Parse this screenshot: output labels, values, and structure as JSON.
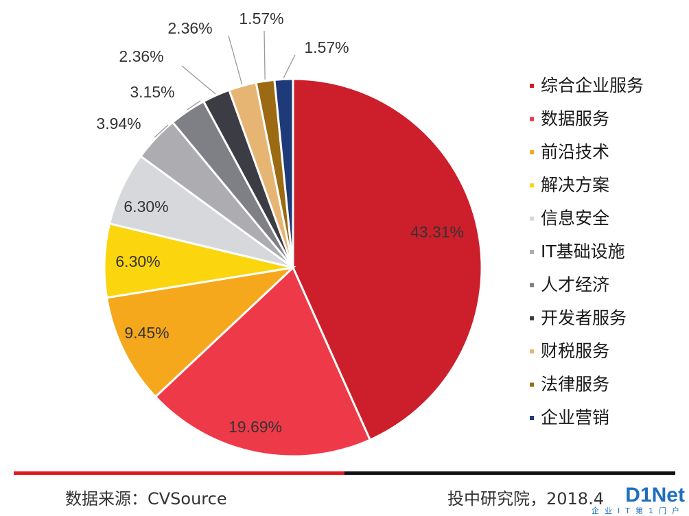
{
  "chart_data": {
    "type": "pie",
    "categories": [
      "综合企业服务",
      "数据服务",
      "前沿技术",
      "解决方案",
      "信息安全",
      "IT基础设施",
      "人才经济",
      "开发者服务",
      "财税服务",
      "法律服务",
      "企业营销"
    ],
    "values": [
      43.31,
      19.69,
      9.45,
      6.3,
      6.3,
      3.94,
      3.15,
      2.36,
      2.36,
      1.57,
      1.57
    ],
    "labels": [
      "43.31%",
      "19.69%",
      "9.45%",
      "6.30%",
      "6.30%",
      "3.94%",
      "3.15%",
      "2.36%",
      "2.36%",
      "1.57%",
      "1.57%"
    ],
    "colors": [
      "#cc1f2b",
      "#ee3a48",
      "#f5a81c",
      "#fbd50e",
      "#d6d8dc",
      "#adadb1",
      "#7f8085",
      "#3c3c44",
      "#e6b574",
      "#9b6a12",
      "#1e3a78"
    ],
    "legend_position": "right",
    "start_angle_deg": 0,
    "direction": "clockwise"
  },
  "footer": {
    "source": "数据来源：CVSource",
    "publisher": "投中研究院，2018.4"
  },
  "watermark": {
    "logo": "D1Net",
    "tagline": "企业IT第1门户"
  },
  "colors": {
    "bar_red": "#e0191f",
    "bar_black": "#111111"
  }
}
